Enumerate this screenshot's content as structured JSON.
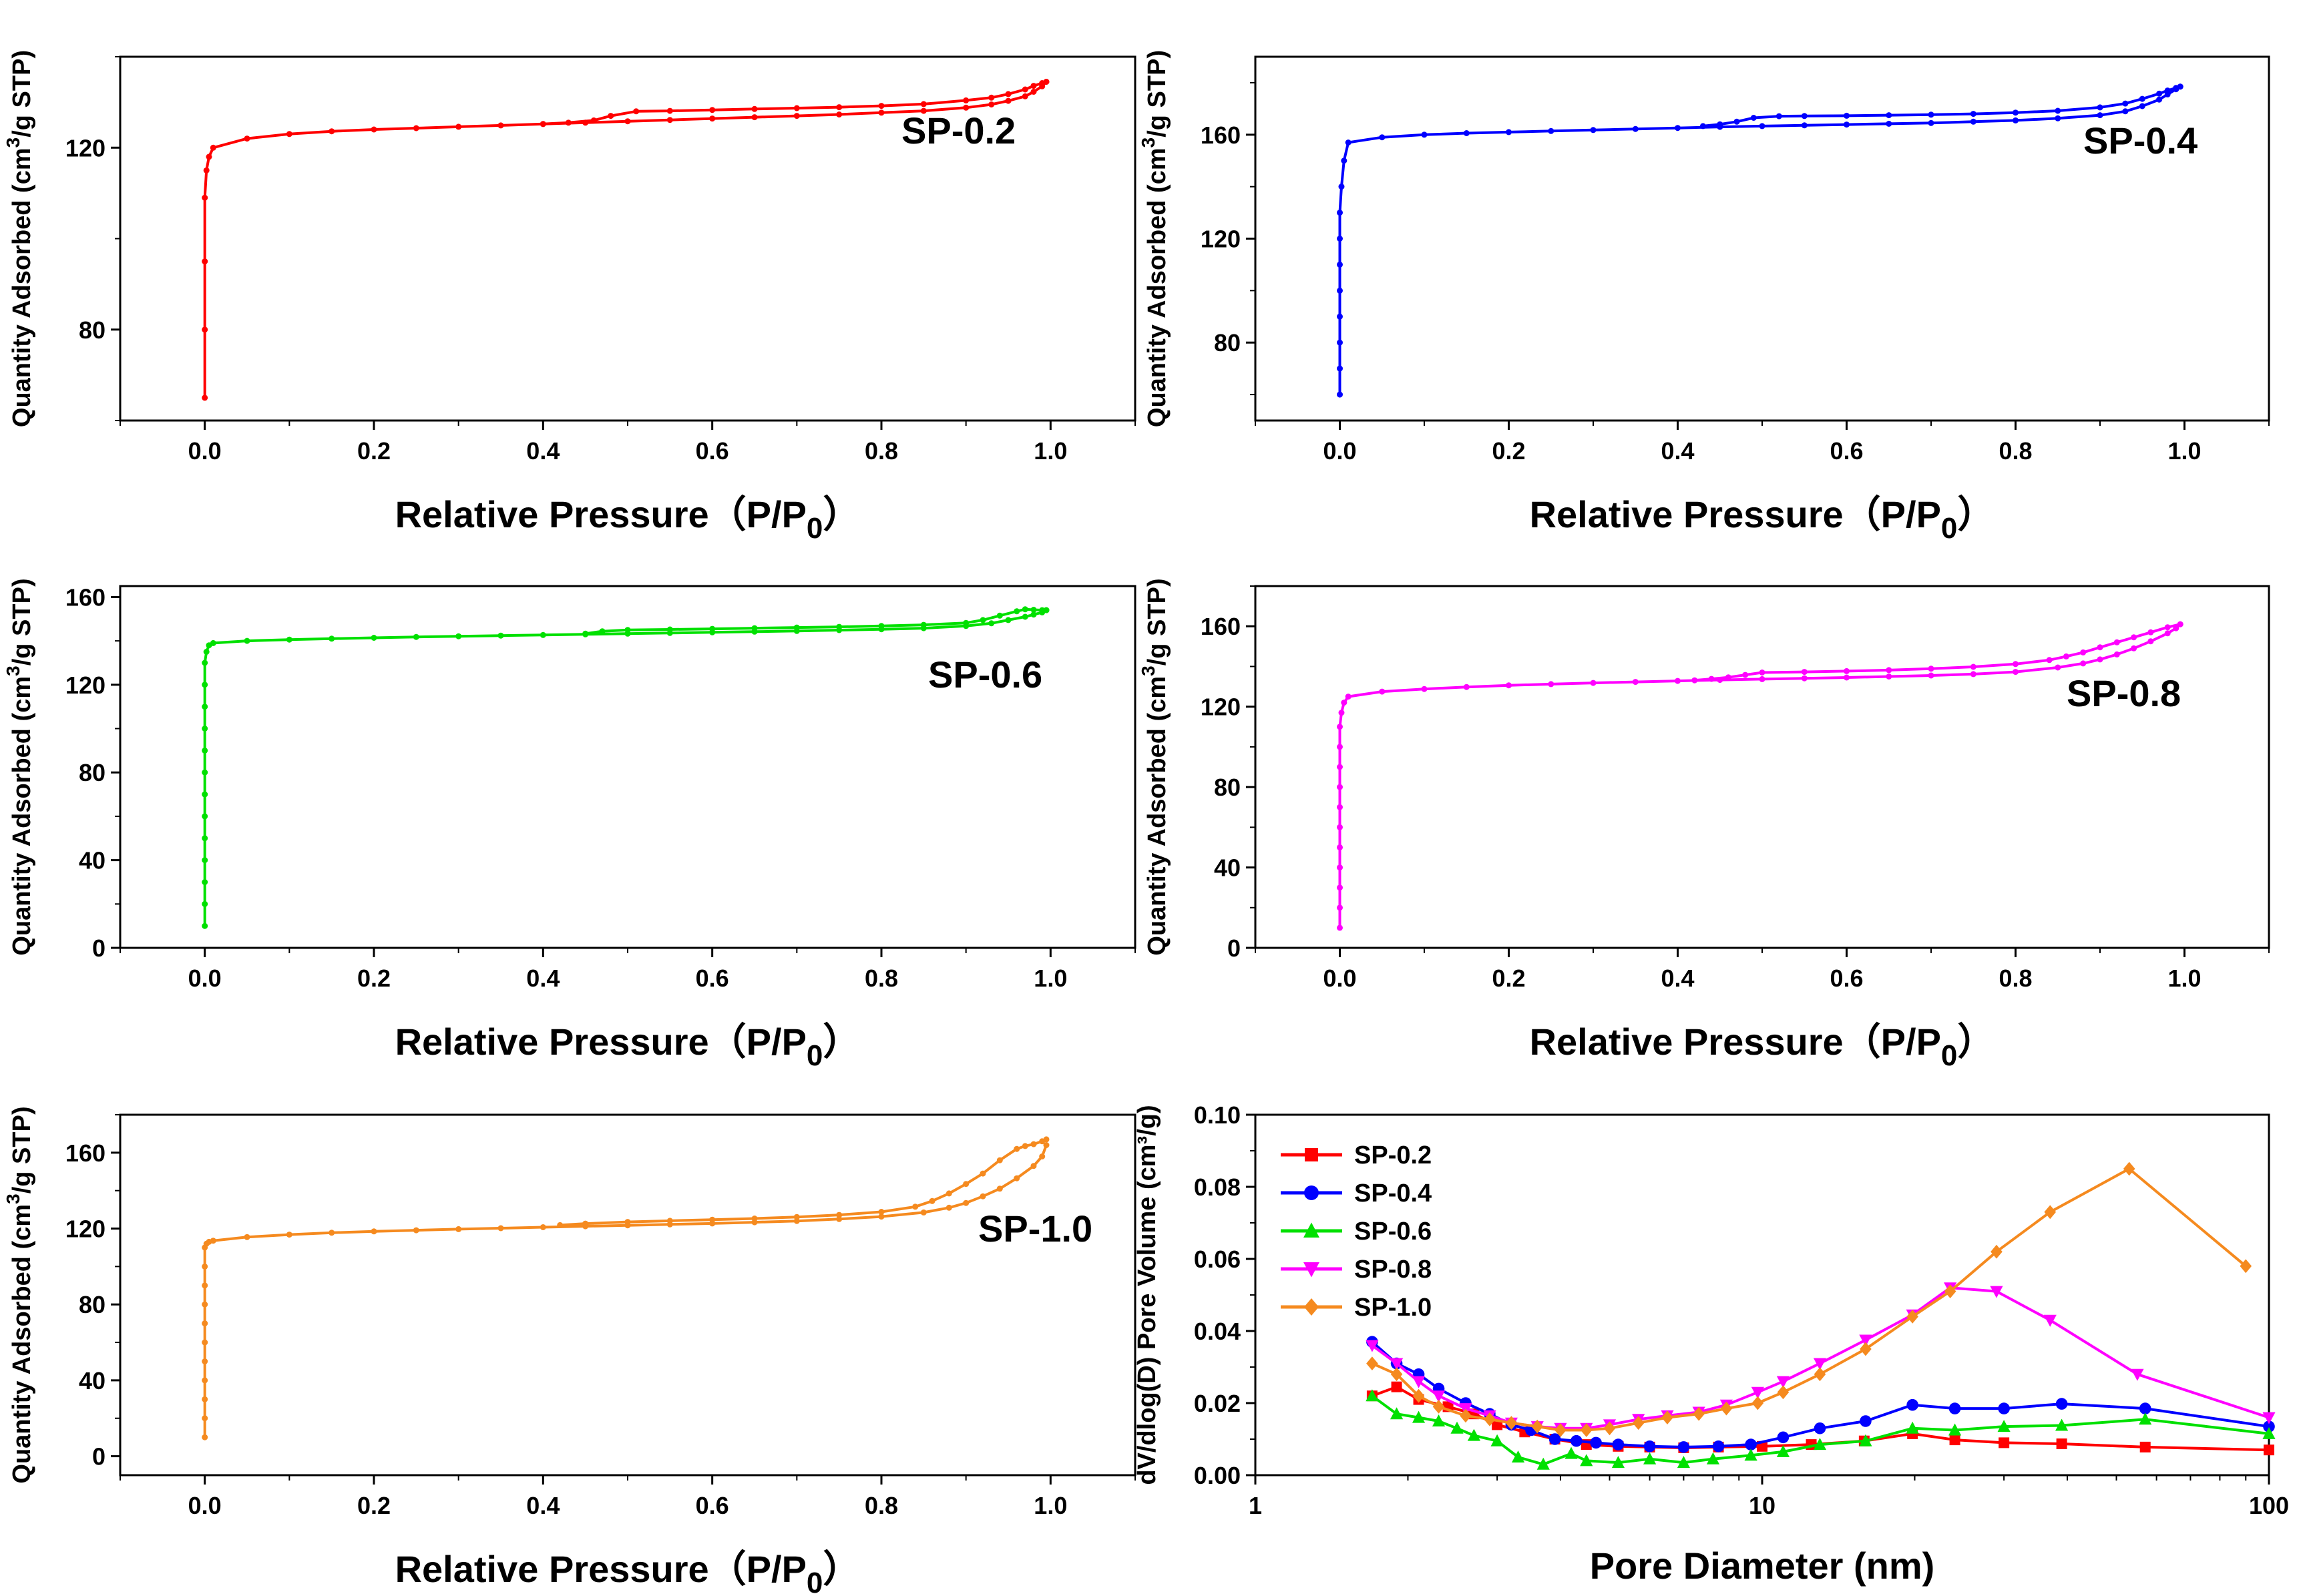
{
  "chart_data": [
    {
      "type": "line",
      "id": "sp02",
      "series_label": "SP-0.2",
      "color": "#ff0000",
      "xlabel": "Relative Pressure（P/P",
      "xlabel_sub": "0",
      "xlabel_close": "）",
      "ylabel": "Quantity Adsorbed (cm",
      "ylabel_sup": "3",
      "ylabel_end": "/g STP)",
      "xlim": [
        -0.1,
        1.1
      ],
      "ylim": [
        60,
        140
      ],
      "xticks": [
        0.0,
        0.2,
        0.4,
        0.6,
        0.8,
        1.0
      ],
      "xtick_labels": [
        "0.0",
        "0.2",
        "0.4",
        "0.6",
        "0.8",
        "1.0"
      ],
      "yticks": [
        80,
        120
      ],
      "ytick_labels": [
        "80",
        "120"
      ],
      "adsorption": {
        "x": [
          0.0,
          0.0,
          0.0,
          0.0,
          0.002,
          0.005,
          0.01,
          0.05,
          0.1,
          0.15,
          0.2,
          0.25,
          0.3,
          0.35,
          0.4,
          0.45,
          0.5,
          0.55,
          0.6,
          0.65,
          0.7,
          0.75,
          0.8,
          0.85,
          0.9,
          0.93,
          0.95,
          0.97,
          0.98,
          0.99,
          0.995
        ],
        "y": [
          65,
          80,
          95,
          109,
          115,
          118,
          120,
          122,
          123,
          123.6,
          124,
          124.3,
          124.6,
          124.9,
          125.2,
          125.5,
          125.8,
          126.1,
          126.4,
          126.7,
          127,
          127.3,
          127.7,
          128.1,
          128.8,
          129.5,
          130.3,
          131.3,
          132.3,
          133.5,
          134.5
        ]
      },
      "desorption": {
        "x": [
          0.995,
          0.99,
          0.98,
          0.97,
          0.95,
          0.93,
          0.9,
          0.85,
          0.8,
          0.75,
          0.7,
          0.65,
          0.6,
          0.55,
          0.51,
          0.48,
          0.46,
          0.43,
          0.4
        ],
        "y": [
          134.5,
          134.2,
          133.6,
          132.8,
          131.8,
          131.0,
          130.4,
          129.6,
          129.2,
          128.9,
          128.7,
          128.5,
          128.3,
          128.1,
          128.0,
          127.0,
          126.0,
          125.5,
          125.2
        ]
      }
    },
    {
      "type": "line",
      "id": "sp04",
      "series_label": "SP-0.4",
      "color": "#0000ff",
      "xlabel": "Relative Pressure（P/P",
      "xlabel_sub": "0",
      "xlabel_close": "）",
      "ylabel": "Quantity Adsorbed (cm",
      "ylabel_sup": "3",
      "ylabel_end": "/g STP)",
      "xlim": [
        -0.1,
        1.1
      ],
      "ylim": [
        50,
        190
      ],
      "xticks": [
        0.0,
        0.2,
        0.4,
        0.6,
        0.8,
        1.0
      ],
      "xtick_labels": [
        "0.0",
        "0.2",
        "0.4",
        "0.6",
        "0.8",
        "1.0"
      ],
      "yticks": [
        80,
        120,
        160
      ],
      "ytick_labels": [
        "80",
        "120",
        "160"
      ],
      "adsorption": {
        "x": [
          0.0,
          0.0,
          0.0,
          0.0,
          0.0,
          0.0,
          0.0,
          0.0,
          0.002,
          0.005,
          0.01,
          0.05,
          0.1,
          0.15,
          0.2,
          0.25,
          0.3,
          0.35,
          0.4,
          0.45,
          0.5,
          0.55,
          0.6,
          0.65,
          0.7,
          0.75,
          0.8,
          0.85,
          0.9,
          0.93,
          0.95,
          0.97,
          0.98,
          0.99,
          0.995
        ],
        "y": [
          60,
          70,
          80,
          90,
          100,
          110,
          120,
          130,
          140,
          150,
          157,
          159,
          160,
          160.6,
          161,
          161.4,
          161.8,
          162.2,
          162.6,
          163,
          163.3,
          163.6,
          163.9,
          164.2,
          164.5,
          165,
          165.5,
          166.3,
          167.5,
          169,
          171,
          173.5,
          175.5,
          177.5,
          178.5
        ]
      },
      "desorption": {
        "x": [
          0.995,
          0.99,
          0.98,
          0.97,
          0.95,
          0.93,
          0.9,
          0.85,
          0.8,
          0.75,
          0.7,
          0.65,
          0.6,
          0.55,
          0.52,
          0.49,
          0.47,
          0.45,
          0.43
        ],
        "y": [
          178.5,
          178.0,
          177.0,
          175.8,
          173.8,
          172.0,
          170.5,
          169.2,
          168.5,
          168.0,
          167.7,
          167.5,
          167.3,
          167.2,
          167.1,
          166.5,
          165.0,
          164.0,
          163.3
        ]
      }
    },
    {
      "type": "line",
      "id": "sp06",
      "series_label": "SP-0.6",
      "color": "#00e000",
      "xlabel": "Relative Pressure（P/P",
      "xlabel_sub": "0",
      "xlabel_close": "）",
      "ylabel": "Quantity Adsorbed (cm",
      "ylabel_sup": "3",
      "ylabel_end": "/g STP)",
      "xlim": [
        -0.1,
        1.1
      ],
      "ylim": [
        0,
        165
      ],
      "xticks": [
        0.0,
        0.2,
        0.4,
        0.6,
        0.8,
        1.0
      ],
      "xtick_labels": [
        "0.0",
        "0.2",
        "0.4",
        "0.6",
        "0.8",
        "1.0"
      ],
      "yticks": [
        0,
        40,
        80,
        120,
        160
      ],
      "ytick_labels": [
        "0",
        "40",
        "80",
        "120",
        "160"
      ],
      "adsorption": {
        "x": [
          0.0,
          0.0,
          0.0,
          0.0,
          0.0,
          0.0,
          0.0,
          0.0,
          0.0,
          0.0,
          0.0,
          0.0,
          0.0,
          0.002,
          0.005,
          0.01,
          0.05,
          0.1,
          0.15,
          0.2,
          0.25,
          0.3,
          0.35,
          0.4,
          0.45,
          0.5,
          0.55,
          0.6,
          0.65,
          0.7,
          0.75,
          0.8,
          0.85,
          0.9,
          0.93,
          0.95,
          0.97,
          0.98,
          0.99,
          0.995
        ],
        "y": [
          10,
          20,
          30,
          40,
          50,
          60,
          70,
          80,
          90,
          100,
          110,
          120,
          130,
          135,
          138,
          139,
          140,
          140.6,
          141,
          141.4,
          141.8,
          142.1,
          142.4,
          142.7,
          143,
          143.3,
          143.6,
          143.9,
          144.2,
          144.5,
          144.9,
          145.3,
          145.8,
          146.8,
          148,
          149.5,
          151,
          152,
          153,
          154
        ]
      },
      "desorption": {
        "x": [
          0.995,
          0.99,
          0.98,
          0.97,
          0.96,
          0.94,
          0.92,
          0.9,
          0.85,
          0.8,
          0.75,
          0.7,
          0.65,
          0.6,
          0.55,
          0.5,
          0.47,
          0.45
        ],
        "y": [
          154,
          154,
          154.2,
          154.4,
          153.5,
          151.5,
          149.5,
          148.2,
          147.3,
          146.8,
          146.4,
          146.1,
          145.8,
          145.5,
          145.2,
          145.0,
          144.4,
          143.3
        ]
      }
    },
    {
      "type": "line",
      "id": "sp08",
      "series_label": "SP-0.8",
      "color": "#ff00ff",
      "xlabel": "Relative Pressure（P/P",
      "xlabel_sub": "0",
      "xlabel_close": "）",
      "ylabel": "Quantity Adsorbed (cm",
      "ylabel_sup": "3",
      "ylabel_end": "/g STP)",
      "xlim": [
        -0.1,
        1.1
      ],
      "ylim": [
        0,
        180
      ],
      "xticks": [
        0.0,
        0.2,
        0.4,
        0.6,
        0.8,
        1.0
      ],
      "xtick_labels": [
        "0.0",
        "0.2",
        "0.4",
        "0.6",
        "0.8",
        "1.0"
      ],
      "yticks": [
        0,
        40,
        80,
        120,
        160
      ],
      "ytick_labels": [
        "0",
        "40",
        "80",
        "120",
        "160"
      ],
      "adsorption": {
        "x": [
          0.0,
          0.0,
          0.0,
          0.0,
          0.0,
          0.0,
          0.0,
          0.0,
          0.0,
          0.0,
          0.0,
          0.002,
          0.005,
          0.01,
          0.05,
          0.1,
          0.15,
          0.2,
          0.25,
          0.3,
          0.35,
          0.4,
          0.45,
          0.5,
          0.55,
          0.6,
          0.65,
          0.7,
          0.75,
          0.8,
          0.85,
          0.88,
          0.9,
          0.92,
          0.94,
          0.96,
          0.98,
          0.99,
          0.995
        ],
        "y": [
          10,
          20,
          30,
          40,
          50,
          60,
          70,
          80,
          90,
          100,
          110,
          117,
          122,
          125,
          127.5,
          128.8,
          129.8,
          130.6,
          131.2,
          131.8,
          132.3,
          132.8,
          133.3,
          133.7,
          134.1,
          134.5,
          135,
          135.5,
          136.2,
          137.3,
          139.5,
          141.5,
          143.5,
          146,
          149,
          152.5,
          156.5,
          159,
          161
        ]
      },
      "desorption": {
        "x": [
          0.995,
          0.98,
          0.96,
          0.94,
          0.92,
          0.9,
          0.88,
          0.86,
          0.84,
          0.8,
          0.75,
          0.7,
          0.65,
          0.6,
          0.55,
          0.5,
          0.48,
          0.46,
          0.44,
          0.42
        ],
        "y": [
          161,
          159.5,
          157,
          154.5,
          152,
          149.5,
          147,
          145,
          143.2,
          141.2,
          139.8,
          138.9,
          138.2,
          137.7,
          137.3,
          137,
          135.8,
          134.6,
          133.8,
          133.1
        ]
      }
    },
    {
      "type": "line",
      "id": "sp10",
      "series_label": "SP-1.0",
      "color": "#f58a1f",
      "xlabel": "Relative Pressure（P/P",
      "xlabel_sub": "0",
      "xlabel_close": "）",
      "ylabel": "Quantity Adsorbed (cm",
      "ylabel_sup": "3",
      "ylabel_end": "/g STP)",
      "xlim": [
        -0.1,
        1.1
      ],
      "ylim": [
        -10,
        180
      ],
      "xticks": [
        0.0,
        0.2,
        0.4,
        0.6,
        0.8,
        1.0
      ],
      "xtick_labels": [
        "0.0",
        "0.2",
        "0.4",
        "0.6",
        "0.8",
        "1.0"
      ],
      "yticks": [
        0,
        40,
        80,
        120,
        160
      ],
      "ytick_labels": [
        "0",
        "40",
        "80",
        "120",
        "160"
      ],
      "adsorption": {
        "x": [
          0.0,
          0.0,
          0.0,
          0.0,
          0.0,
          0.0,
          0.0,
          0.0,
          0.0,
          0.0,
          0.0,
          0.002,
          0.005,
          0.01,
          0.05,
          0.1,
          0.15,
          0.2,
          0.25,
          0.3,
          0.35,
          0.4,
          0.45,
          0.5,
          0.55,
          0.6,
          0.65,
          0.7,
          0.75,
          0.8,
          0.85,
          0.88,
          0.9,
          0.92,
          0.94,
          0.96,
          0.98,
          0.99,
          0.995
        ],
        "y": [
          10,
          20,
          30,
          40,
          50,
          60,
          70,
          80,
          90,
          100,
          110,
          112,
          113,
          113.6,
          115.5,
          116.8,
          117.8,
          118.5,
          119.1,
          119.7,
          120.2,
          120.7,
          121.2,
          121.7,
          122.2,
          122.7,
          123.3,
          124,
          125,
          126.3,
          128.5,
          131,
          133.5,
          137,
          141,
          146.5,
          153,
          158,
          164
        ]
      },
      "desorption": {
        "x": [
          0.995,
          0.99,
          0.98,
          0.97,
          0.96,
          0.94,
          0.92,
          0.9,
          0.88,
          0.86,
          0.84,
          0.8,
          0.75,
          0.7,
          0.65,
          0.6,
          0.55,
          0.5,
          0.45,
          0.42
        ],
        "y": [
          167,
          166,
          164.5,
          163.5,
          162,
          156,
          149,
          143.5,
          138.5,
          134.5,
          131.5,
          128.8,
          127.2,
          126.1,
          125.3,
          124.7,
          124.1,
          123.5,
          122.6,
          121.8
        ]
      }
    },
    {
      "type": "line",
      "id": "psd",
      "xscale": "log",
      "xlabel": "Pore Diameter (nm)",
      "ylabel": "dV/dlog(D) Pore Volume (cm³/g)",
      "xlim": [
        1,
        100
      ],
      "ylim": [
        0,
        0.1
      ],
      "xticks": [
        1,
        10,
        100
      ],
      "xtick_labels": [
        "1",
        "10",
        "100"
      ],
      "yticks": [
        0.0,
        0.02,
        0.04,
        0.06,
        0.08,
        0.1
      ],
      "ytick_labels": [
        "0.00",
        "0.02",
        "0.04",
        "0.06",
        "0.08",
        "0.10"
      ],
      "legend_position": "top-left",
      "series": [
        {
          "name": "SP-0.2",
          "color": "#ff0000",
          "marker": "square",
          "x": [
            1.7,
            1.9,
            2.1,
            2.4,
            2.7,
            3.0,
            3.4,
            3.9,
            4.5,
            5.2,
            6.0,
            7.0,
            8.2,
            10.0,
            12.5,
            15.9,
            19.8,
            24.0,
            30.0,
            39.0,
            57.0,
            100.0
          ],
          "y": [
            0.022,
            0.0245,
            0.021,
            0.019,
            0.017,
            0.014,
            0.012,
            0.01,
            0.0085,
            0.008,
            0.0078,
            0.0076,
            0.0078,
            0.008,
            0.0085,
            0.0095,
            0.0115,
            0.0098,
            0.009,
            0.0087,
            0.0078,
            0.007
          ]
        },
        {
          "name": "SP-0.4",
          "color": "#0000ff",
          "marker": "circle",
          "x": [
            1.7,
            1.9,
            2.1,
            2.3,
            2.6,
            2.9,
            3.2,
            3.5,
            3.9,
            4.3,
            4.7,
            5.2,
            6.0,
            7.0,
            8.2,
            9.5,
            11.0,
            13.0,
            16.0,
            19.8,
            24.0,
            30.0,
            39.0,
            57.0,
            100.0
          ],
          "y": [
            0.037,
            0.031,
            0.028,
            0.024,
            0.02,
            0.017,
            0.014,
            0.0125,
            0.01,
            0.0095,
            0.009,
            0.0085,
            0.008,
            0.0078,
            0.008,
            0.0085,
            0.0105,
            0.013,
            0.015,
            0.0195,
            0.0185,
            0.0185,
            0.0198,
            0.0185,
            0.0135
          ]
        },
        {
          "name": "SP-0.6",
          "color": "#00e000",
          "marker": "triangle-up",
          "x": [
            1.7,
            1.9,
            2.1,
            2.3,
            2.5,
            2.7,
            3.0,
            3.3,
            3.7,
            4.2,
            4.5,
            5.2,
            6.0,
            7.0,
            8.0,
            9.5,
            11.0,
            13.0,
            16.0,
            19.8,
            24.0,
            30.0,
            39.0,
            57.0,
            100.0
          ],
          "y": [
            0.022,
            0.017,
            0.016,
            0.015,
            0.013,
            0.011,
            0.0095,
            0.005,
            0.003,
            0.006,
            0.004,
            0.0035,
            0.0045,
            0.0035,
            0.0045,
            0.0055,
            0.0065,
            0.0085,
            0.0095,
            0.013,
            0.0125,
            0.0135,
            0.0138,
            0.0155,
            0.0115
          ]
        },
        {
          "name": "SP-0.8",
          "color": "#ff00ff",
          "marker": "triangle-down",
          "x": [
            1.7,
            1.9,
            2.1,
            2.3,
            2.6,
            2.9,
            3.2,
            3.6,
            4.0,
            4.5,
            5.0,
            5.7,
            6.5,
            7.5,
            8.5,
            9.8,
            11.0,
            13.0,
            16.0,
            19.8,
            23.5,
            29.0,
            37.0,
            55.0,
            100.0
          ],
          "y": [
            0.036,
            0.031,
            0.026,
            0.022,
            0.0185,
            0.0165,
            0.0145,
            0.0135,
            0.013,
            0.013,
            0.014,
            0.0155,
            0.0165,
            0.0175,
            0.0195,
            0.023,
            0.026,
            0.031,
            0.0375,
            0.0445,
            0.052,
            0.051,
            0.043,
            0.028,
            0.016
          ]
        },
        {
          "name": "SP-1.0",
          "color": "#f58a1f",
          "marker": "diamond",
          "x": [
            1.7,
            1.9,
            2.1,
            2.3,
            2.6,
            2.9,
            3.2,
            3.6,
            4.0,
            4.5,
            5.0,
            5.7,
            6.5,
            7.5,
            8.5,
            9.8,
            11.0,
            13.0,
            16.0,
            19.8,
            23.5,
            29.0,
            37.0,
            53.0,
            90.0
          ],
          "y": [
            0.031,
            0.028,
            0.022,
            0.019,
            0.0165,
            0.0155,
            0.0145,
            0.0135,
            0.0125,
            0.0125,
            0.013,
            0.0145,
            0.016,
            0.017,
            0.0185,
            0.02,
            0.023,
            0.028,
            0.035,
            0.044,
            0.051,
            0.062,
            0.073,
            0.085,
            0.058
          ]
        }
      ]
    }
  ]
}
